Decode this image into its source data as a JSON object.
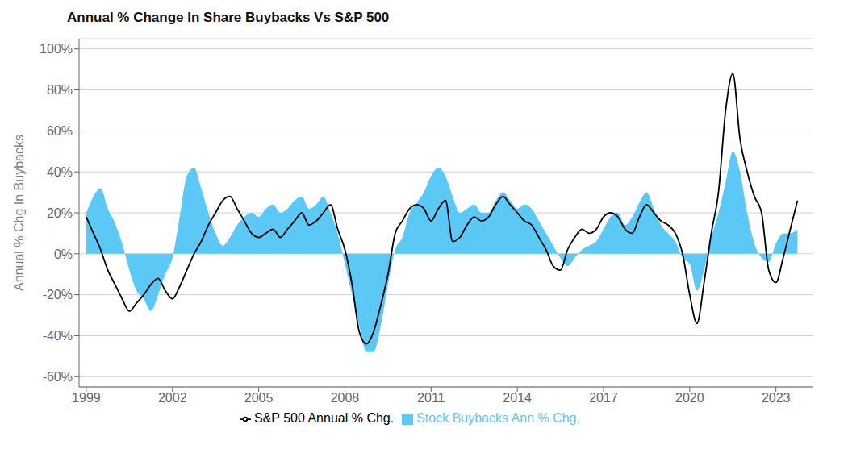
{
  "chart_data": {
    "type": "line",
    "title": "Annual % Change In Share Buybacks Vs S&P 500",
    "ylabel": "Annual % Chg In Buybacks",
    "x": [
      1999.0,
      1999.25,
      1999.5,
      1999.75,
      2000.0,
      2000.25,
      2000.5,
      2000.75,
      2001.0,
      2001.25,
      2001.5,
      2001.75,
      2002.0,
      2002.25,
      2002.5,
      2002.75,
      2003.0,
      2003.25,
      2003.5,
      2003.75,
      2004.0,
      2004.25,
      2004.5,
      2004.75,
      2005.0,
      2005.25,
      2005.5,
      2005.75,
      2006.0,
      2006.25,
      2006.5,
      2006.75,
      2007.0,
      2007.25,
      2007.5,
      2007.75,
      2008.0,
      2008.25,
      2008.5,
      2008.75,
      2009.0,
      2009.25,
      2009.5,
      2009.75,
      2010.0,
      2010.25,
      2010.5,
      2010.75,
      2011.0,
      2011.25,
      2011.5,
      2011.75,
      2012.0,
      2012.25,
      2012.5,
      2012.75,
      2013.0,
      2013.25,
      2013.5,
      2013.75,
      2014.0,
      2014.25,
      2014.5,
      2014.75,
      2015.0,
      2015.25,
      2015.5,
      2015.75,
      2016.0,
      2016.25,
      2016.5,
      2016.75,
      2017.0,
      2017.25,
      2017.5,
      2017.75,
      2018.0,
      2018.25,
      2018.5,
      2018.75,
      2019.0,
      2019.25,
      2019.5,
      2019.75,
      2020.0,
      2020.25,
      2020.5,
      2020.75,
      2021.0,
      2021.25,
      2021.5,
      2021.75,
      2022.0,
      2022.25,
      2022.5,
      2022.75,
      2023.0,
      2023.25,
      2023.5,
      2023.75
    ],
    "series": [
      {
        "name": "Stock Buybacks Ann % Chg,",
        "type": "area",
        "color": "#5bc8f5",
        "values": [
          20,
          28,
          32,
          22,
          15,
          5,
          -8,
          -18,
          -22,
          -28,
          -20,
          -10,
          -2,
          18,
          38,
          42,
          32,
          20,
          10,
          4,
          8,
          14,
          18,
          20,
          18,
          22,
          24,
          20,
          22,
          26,
          28,
          22,
          24,
          28,
          20,
          10,
          -5,
          -20,
          -35,
          -48,
          -48,
          -35,
          -15,
          2,
          8,
          20,
          25,
          30,
          38,
          42,
          38,
          28,
          20,
          22,
          24,
          20,
          20,
          26,
          30,
          26,
          22,
          24,
          22,
          16,
          10,
          4,
          -2,
          -6,
          -2,
          2,
          4,
          6,
          12,
          18,
          20,
          14,
          18,
          25,
          30,
          22,
          14,
          10,
          6,
          -2,
          -5,
          -18,
          -8,
          8,
          20,
          35,
          50,
          40,
          20,
          5,
          -2,
          -4,
          5,
          10,
          10,
          12
        ]
      },
      {
        "name": "S&P 500 Annual % Chg.",
        "type": "line",
        "color": "#000000",
        "values": [
          18,
          10,
          2,
          -8,
          -15,
          -22,
          -28,
          -24,
          -20,
          -15,
          -12,
          -18,
          -22,
          -16,
          -8,
          0,
          6,
          14,
          20,
          26,
          28,
          22,
          16,
          10,
          8,
          10,
          12,
          8,
          12,
          16,
          20,
          14,
          16,
          20,
          24,
          12,
          2,
          -15,
          -38,
          -44,
          -38,
          -25,
          -10,
          10,
          16,
          22,
          24,
          22,
          16,
          22,
          26,
          6,
          8,
          14,
          18,
          16,
          18,
          24,
          28,
          24,
          20,
          16,
          14,
          8,
          2,
          -6,
          -8,
          2,
          8,
          12,
          10,
          12,
          18,
          20,
          18,
          12,
          10,
          18,
          24,
          20,
          16,
          14,
          10,
          0,
          -20,
          -34,
          -14,
          10,
          30,
          70,
          88,
          56,
          40,
          28,
          20,
          -8,
          -14,
          -2,
          12,
          26
        ]
      }
    ],
    "xlim": [
      1998.75,
      2024.3
    ],
    "xticks": [
      1999,
      2002,
      2005,
      2008,
      2011,
      2014,
      2017,
      2020,
      2023
    ],
    "ylim": [
      -65,
      105
    ],
    "yticks": [
      {
        "value": -60,
        "label": "-60%"
      },
      {
        "value": -40,
        "label": "-40%"
      },
      {
        "value": -20,
        "label": "-20%"
      },
      {
        "value": 0,
        "label": "0%"
      },
      {
        "value": 20,
        "label": "20%"
      },
      {
        "value": 40,
        "label": "40%"
      },
      {
        "value": 60,
        "label": "60%"
      },
      {
        "value": 80,
        "label": "80%"
      },
      {
        "value": 100,
        "label": "100%"
      }
    ],
    "grid": true,
    "legend": "bottom"
  }
}
